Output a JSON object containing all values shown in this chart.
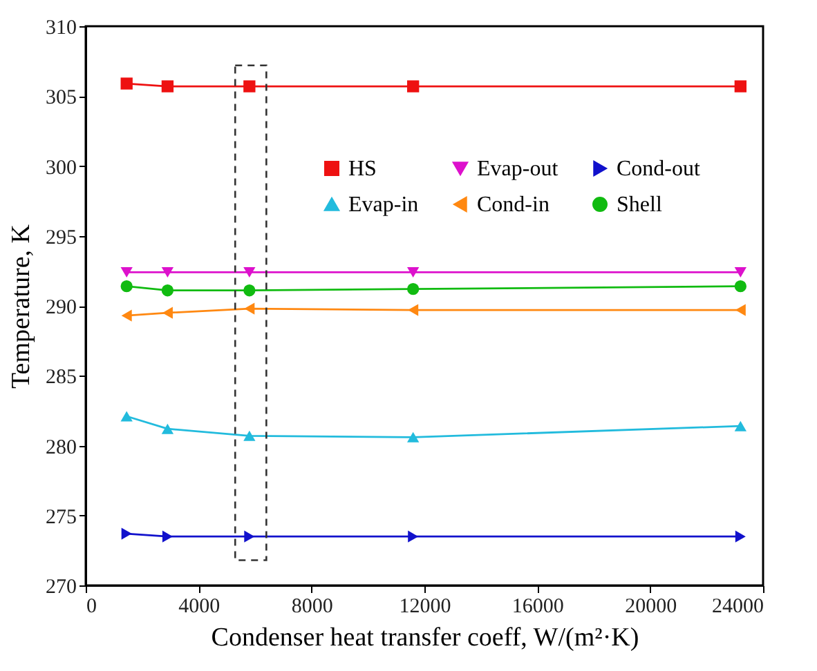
{
  "chart_data": {
    "type": "line",
    "xlabel": "Condenser heat transfer coeff, W/(m²·K)",
    "ylabel": "Temperature, K",
    "x": [
      1450,
      2900,
      5800,
      11600,
      23200
    ],
    "series": [
      {
        "name": "HS",
        "color": "#ee1111",
        "marker": "square",
        "values": [
          305.9,
          305.7,
          305.7,
          305.7,
          305.7
        ]
      },
      {
        "name": "Evap-in",
        "color": "#22bbdd",
        "marker": "triangle-up",
        "values": [
          282.1,
          281.2,
          280.7,
          280.6,
          281.4
        ]
      },
      {
        "name": "Evap-out",
        "color": "#dd11cc",
        "marker": "triangle-down",
        "values": [
          292.4,
          292.4,
          292.4,
          292.4,
          292.4
        ]
      },
      {
        "name": "Cond-in",
        "color": "#ff8811",
        "marker": "triangle-left",
        "values": [
          289.3,
          289.5,
          289.8,
          289.7,
          289.7
        ]
      },
      {
        "name": "Cond-out",
        "color": "#1111cc",
        "marker": "triangle-right",
        "values": [
          273.7,
          273.5,
          273.5,
          273.5,
          273.5
        ]
      },
      {
        "name": "Shell",
        "color": "#11bb11",
        "marker": "circle",
        "values": [
          291.4,
          291.1,
          291.1,
          291.2,
          291.4
        ]
      }
    ],
    "xlim": [
      0,
      24000
    ],
    "xticks": [
      0,
      4000,
      8000,
      12000,
      16000,
      20000,
      24000
    ],
    "ylim": [
      270,
      310
    ],
    "yticks": [
      270,
      275,
      280,
      285,
      290,
      295,
      300,
      305,
      310
    ],
    "legend": "top right",
    "grid": false
  }
}
